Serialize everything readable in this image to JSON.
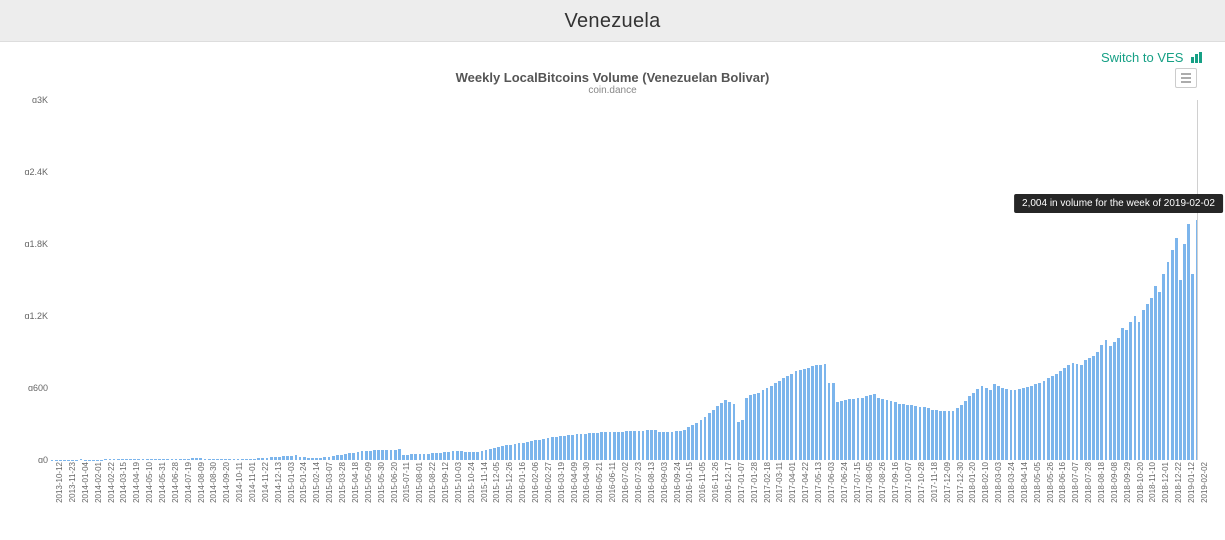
{
  "header": {
    "title": "Venezuela"
  },
  "switch": {
    "label": "Switch to VES"
  },
  "chart": {
    "type": "bar",
    "title": "Weekly LocalBitcoins Volume (Venezuelan Bolivar)",
    "subtitle": "coin.dance",
    "bar_color": "#7cb5ec",
    "background_color": "#ffffff",
    "tooltip_bg": "rgba(20,20,20,0.92)",
    "tooltip_color": "#ffffff",
    "y": {
      "min": 0,
      "max": 3000,
      "ticks": [
        {
          "v": 0,
          "label": "ɑ0"
        },
        {
          "v": 600,
          "label": "ɑ600"
        },
        {
          "v": 1200,
          "label": "ɑ1.2K"
        },
        {
          "v": 1800,
          "label": "ɑ1.8K"
        },
        {
          "v": 2400,
          "label": "ɑ2.4K"
        },
        {
          "v": 3000,
          "label": "ɑ3K"
        }
      ]
    },
    "tooltip": {
      "text": "2,004 in volume for the week of 2019-02-02",
      "at_index": 277
    },
    "x_labels": [
      "2013-10-12",
      "2013-11-23",
      "2014-01-04",
      "2014-02-01",
      "2014-02-22",
      "2014-03-15",
      "2014-04-19",
      "2014-05-10",
      "2014-05-31",
      "2014-06-28",
      "2014-07-19",
      "2014-08-09",
      "2014-08-30",
      "2014-09-20",
      "2014-10-11",
      "2014-11-01",
      "2014-11-22",
      "2014-12-13",
      "2015-01-03",
      "2015-01-24",
      "2015-02-14",
      "2015-03-07",
      "2015-03-28",
      "2015-04-18",
      "2015-05-09",
      "2015-05-30",
      "2015-06-20",
      "2015-07-11",
      "2015-08-01",
      "2015-08-22",
      "2015-09-12",
      "2015-10-03",
      "2015-10-24",
      "2015-11-14",
      "2015-12-05",
      "2015-12-26",
      "2016-01-16",
      "2016-02-06",
      "2016-02-27",
      "2016-03-19",
      "2016-04-09",
      "2016-04-30",
      "2016-05-21",
      "2016-06-11",
      "2016-07-02",
      "2016-07-23",
      "2016-08-13",
      "2016-09-03",
      "2016-09-24",
      "2016-10-15",
      "2016-11-05",
      "2016-11-26",
      "2016-12-17",
      "2017-01-07",
      "2017-01-28",
      "2017-02-18",
      "2017-03-11",
      "2017-04-01",
      "2017-04-22",
      "2017-05-13",
      "2017-06-03",
      "2017-06-24",
      "2017-07-15",
      "2017-08-05",
      "2017-08-26",
      "2017-09-16",
      "2017-10-07",
      "2017-10-28",
      "2017-11-18",
      "2017-12-09",
      "2017-12-30",
      "2018-01-20",
      "2018-02-10",
      "2018-03-03",
      "2018-03-24",
      "2018-04-14",
      "2018-05-05",
      "2018-05-26",
      "2018-06-16",
      "2018-07-07",
      "2018-07-28",
      "2018-08-18",
      "2018-09-08",
      "2018-09-29",
      "2018-10-20",
      "2018-11-10",
      "2018-12-01",
      "2018-12-22",
      "2019-01-12",
      "2019-02-02"
    ],
    "values": [
      3,
      4,
      4,
      3,
      4,
      3,
      3,
      5,
      4,
      3,
      3,
      3,
      4,
      5,
      6,
      5,
      5,
      5,
      5,
      5,
      6,
      5,
      5,
      6,
      6,
      7,
      6,
      7,
      7,
      8,
      9,
      10,
      10,
      12,
      14,
      14,
      13,
      11,
      10,
      8,
      8,
      7,
      9,
      10,
      11,
      12,
      10,
      9,
      10,
      12,
      15,
      18,
      20,
      23,
      25,
      27,
      30,
      33,
      35,
      38,
      25,
      22,
      20,
      18,
      17,
      20,
      24,
      29,
      34,
      38,
      42,
      48,
      55,
      62,
      68,
      72,
      75,
      78,
      82,
      86,
      85,
      83,
      85,
      87,
      90,
      42,
      45,
      48,
      46,
      48,
      50,
      52,
      55,
      58,
      60,
      65,
      70,
      72,
      74,
      72,
      70,
      68,
      66,
      70,
      74,
      82,
      90,
      100,
      110,
      118,
      123,
      129,
      135,
      138,
      143,
      149,
      156,
      163,
      170,
      177,
      184,
      190,
      195,
      200,
      203,
      206,
      210,
      214,
      217,
      220,
      222,
      225,
      228,
      230,
      231,
      233,
      234,
      236,
      237,
      239,
      240,
      242,
      243,
      244,
      246,
      247,
      248,
      230,
      232,
      234,
      236,
      238,
      240,
      254,
      273,
      292,
      312,
      335,
      360,
      390,
      420,
      450,
      475,
      500,
      480,
      470,
      320,
      330,
      520,
      540,
      550,
      560,
      580,
      600,
      620,
      640,
      660,
      680,
      700,
      720,
      740,
      750,
      760,
      770,
      780,
      790,
      795,
      800,
      640,
      640,
      480,
      490,
      500,
      505,
      510,
      515,
      520,
      530,
      540,
      550,
      520,
      510,
      500,
      490,
      480,
      470,
      465,
      460,
      455,
      450,
      445,
      440,
      430,
      420,
      415,
      410,
      408,
      405,
      410,
      430,
      460,
      495,
      530,
      560,
      590,
      620,
      600,
      580,
      630,
      615,
      600,
      590,
      585,
      580,
      590,
      600,
      610,
      620,
      630,
      640,
      660,
      680,
      700,
      720,
      740,
      770,
      790,
      810,
      800,
      790,
      830,
      850,
      870,
      900,
      960,
      1000,
      950,
      980,
      1020,
      1100,
      1080,
      1150,
      1200,
      1150,
      1250,
      1300,
      1350,
      1450,
      1400,
      1550,
      1650,
      1750,
      1850,
      1500,
      1800,
      1970,
      1550,
      2004
    ]
  }
}
